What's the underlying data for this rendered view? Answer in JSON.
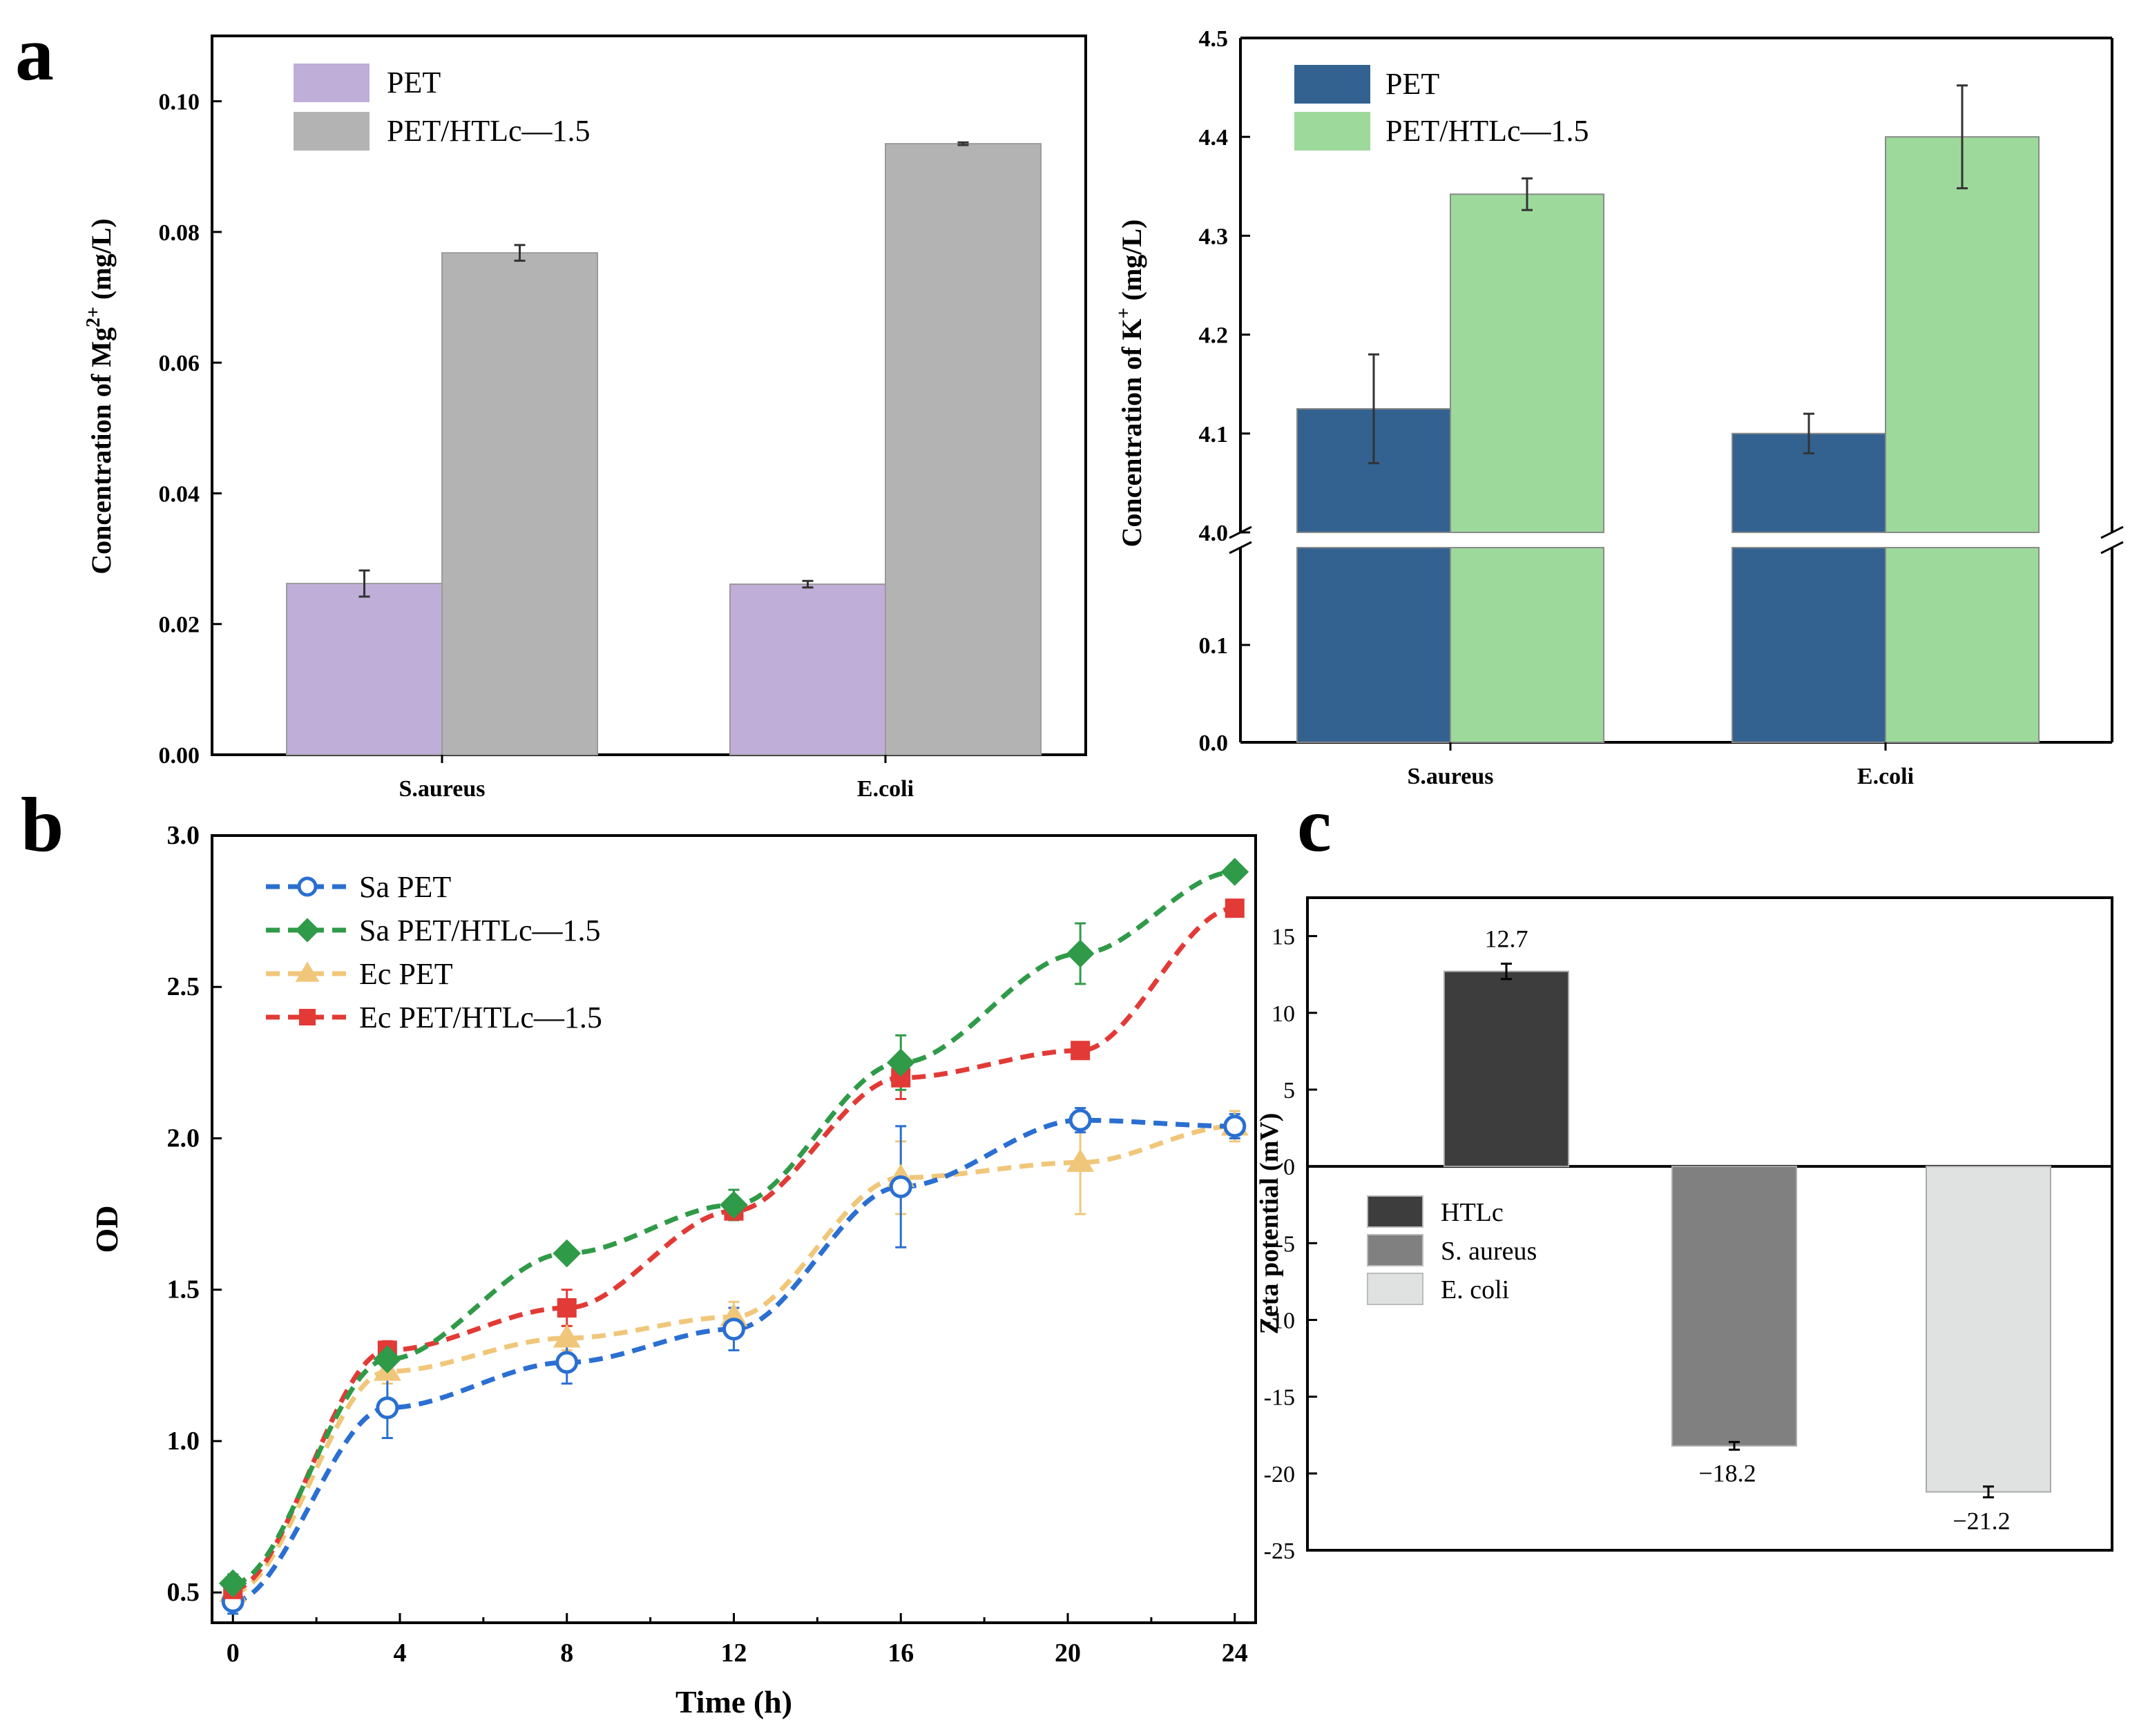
{
  "panels": {
    "a": "a",
    "b": "b",
    "c": "c"
  },
  "chart_data": [
    {
      "id": "a-left",
      "type": "bar",
      "categories": [
        "S.aureus",
        "E.coli"
      ],
      "ylabel_prefix": "Concentration of ",
      "ylabel_ion": "Mg",
      "ylabel_sup": "2+",
      "ylabel_unit": " (mg/L)",
      "ylim": [
        0,
        0.11
      ],
      "yticks": [
        0.0,
        0.02,
        0.04,
        0.06,
        0.08,
        0.1
      ],
      "ytick_labels": [
        "0.00",
        "0.02",
        "0.04",
        "0.06",
        "0.08",
        "0.10"
      ],
      "series": [
        {
          "name": "PET",
          "color": "#bfaed8",
          "values": [
            0.0262,
            0.0261
          ],
          "errors": [
            0.002,
            0.0005
          ]
        },
        {
          "name": "PET/HTLc—1.5",
          "color": "#b3b3b3",
          "values": [
            0.0768,
            0.0935
          ],
          "errors": [
            0.0012,
            0.0002
          ]
        }
      ],
      "legend": "top-left"
    },
    {
      "id": "a-right",
      "type": "bar",
      "categories": [
        "S.aureus",
        "E.coli"
      ],
      "ylabel_prefix": "Concentration of ",
      "ylabel_ion": "K",
      "ylabel_sup": "+",
      "ylabel_unit": " (mg/L)",
      "axis_break": {
        "lower": [
          0,
          0.2
        ],
        "upper": [
          4.0,
          4.5
        ]
      },
      "yticks_lower": [
        0.0,
        0.1
      ],
      "ytick_labels_lower": [
        "0.0",
        "0.1"
      ],
      "yticks_upper": [
        4.0,
        4.1,
        4.2,
        4.3,
        4.4,
        4.5
      ],
      "ytick_labels_upper": [
        "4.0",
        "4.1",
        "4.2",
        "4.3",
        "4.4",
        "4.5"
      ],
      "series": [
        {
          "name": "PET",
          "color": "#336290",
          "values": [
            4.125,
            4.1
          ],
          "errors": [
            0.055,
            0.02
          ]
        },
        {
          "name": "PET/HTLc—1.5",
          "color": "#9dd99b",
          "values": [
            4.342,
            4.4
          ],
          "errors": [
            0.016,
            0.052
          ]
        }
      ],
      "legend": "top-left"
    },
    {
      "id": "b",
      "type": "line",
      "xlabel": "Time (h)",
      "ylabel": "OD",
      "xlim": [
        -0.5,
        24.5
      ],
      "ylim": [
        0.4,
        3.0
      ],
      "xticks": [
        0,
        4,
        8,
        12,
        16,
        20,
        24
      ],
      "xtick_labels": [
        "0",
        "4",
        "8",
        "12",
        "16",
        "20",
        "24"
      ],
      "yticks": [
        0.5,
        1.0,
        1.5,
        2.0,
        2.5,
        3.0
      ],
      "ytick_labels": [
        "0.5",
        "1.0",
        "1.5",
        "2.0",
        "2.5",
        "3.0"
      ],
      "series": [
        {
          "name": "Sa PET",
          "color": "#2a6fd1",
          "marker": "circle",
          "x": [
            0,
            3.7,
            8,
            12,
            16,
            20.3,
            24
          ],
          "y": [
            0.47,
            1.11,
            1.26,
            1.37,
            1.84,
            2.06,
            2.04
          ],
          "errors": [
            0.04,
            0.1,
            0.07,
            0.07,
            0.2,
            0.04,
            0.04
          ]
        },
        {
          "name": "Sa PET/HTLc—1.5",
          "color": "#2f9a48",
          "marker": "diamond",
          "x": [
            0,
            3.7,
            8,
            12,
            16,
            20.3,
            24
          ],
          "y": [
            0.53,
            1.27,
            1.62,
            1.78,
            2.25,
            2.61,
            2.88
          ],
          "errors": [
            0.03,
            0.04,
            0.02,
            0.05,
            0.09,
            0.1,
            0.02
          ]
        },
        {
          "name": "Ec PET",
          "color": "#f0c77a",
          "marker": "triangle",
          "x": [
            0,
            3.7,
            8,
            12,
            16,
            20.3,
            24
          ],
          "y": [
            0.5,
            1.23,
            1.34,
            1.41,
            1.87,
            1.92,
            2.04
          ],
          "errors": [
            0.04,
            0.04,
            0.04,
            0.05,
            0.12,
            0.17,
            0.05
          ]
        },
        {
          "name": "Ec PET/HTLc—1.5",
          "color": "#e23a36",
          "marker": "square",
          "x": [
            0,
            3.7,
            8,
            12,
            16,
            20.3,
            24
          ],
          "y": [
            0.51,
            1.3,
            1.44,
            1.76,
            2.2,
            2.29,
            2.76
          ],
          "errors": [
            0.03,
            0.03,
            0.06,
            0.03,
            0.07,
            0.02,
            0.02
          ]
        }
      ],
      "legend": "top-left"
    },
    {
      "id": "c",
      "type": "bar",
      "ylabel": "Zeta potential (mV)",
      "ylim": [
        -25,
        17.5
      ],
      "yticks": [
        15,
        10,
        5,
        0,
        -5,
        -10,
        -15,
        -20,
        -25
      ],
      "ytick_labels": [
        "15",
        "10",
        "5",
        "0",
        "-5",
        "-10",
        "-15",
        "-20",
        "-25"
      ],
      "categories": [
        "HTLc",
        "S. aureus",
        "E. coli"
      ],
      "values": [
        12.7,
        -18.2,
        -21.2
      ],
      "value_labels": [
        "12.7",
        "−18.2",
        "−21.2"
      ],
      "colors": [
        "#3d3d3d",
        "#808080",
        "#dfe2e1"
      ],
      "errors": [
        0.5,
        0.25,
        0.35
      ],
      "legend": "bottom-left"
    }
  ]
}
